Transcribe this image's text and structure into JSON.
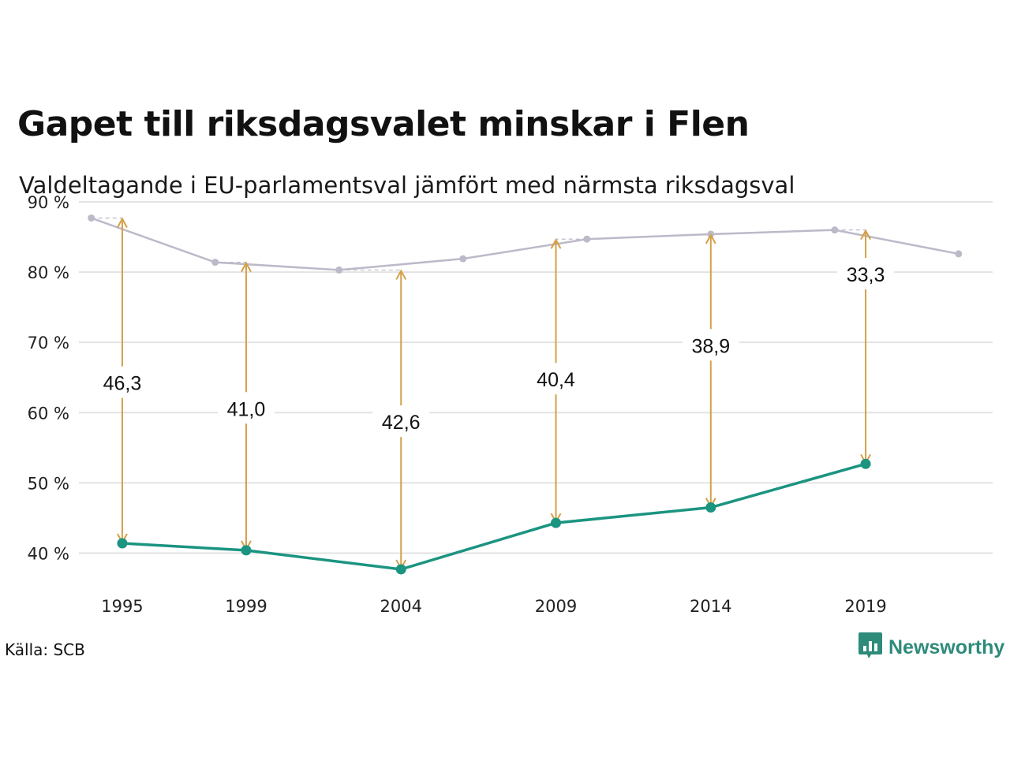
{
  "header": {
    "title": "Gapet till riksdagsvalet minskar i Flen",
    "subtitle": "Valdeltagande i EU-parlamentsval jämfört med närmsta riksdagsval"
  },
  "footer": {
    "source": "Källa: SCB",
    "brand_name": "Newsworthy",
    "brand_icon": "bar-chart-speech-bubble-icon"
  },
  "colors": {
    "eu": "#1b9480",
    "riksdag": "#bcb9c9",
    "arrow": "#d4a04a",
    "grid": "#e3e3e3",
    "brand": "#2e8b7a"
  },
  "chart_data": {
    "type": "line",
    "title": "Gapet till riksdagsvalet minskar i Flen",
    "subtitle": "Valdeltagande i EU-parlamentsval jämfört med närmsta riksdagsval",
    "y_ticks": [
      40,
      50,
      60,
      70,
      80,
      90
    ],
    "y_tick_labels": [
      "40 %",
      "50 %",
      "60 %",
      "70 %",
      "80 %",
      "90 %"
    ],
    "ylim": [
      35,
      90
    ],
    "xlim": [
      1993.6,
      2023.1
    ],
    "x_ticks": [
      1995,
      1999,
      2004,
      2009,
      2014,
      2019
    ],
    "x_tick_labels": [
      "1995",
      "1999",
      "2004",
      "2009",
      "2014",
      "2019"
    ],
    "grid": true,
    "series": [
      {
        "role": "riksdag",
        "x": [
          1994,
          1998,
          2002,
          2006,
          2010,
          2014,
          2018,
          2022
        ],
        "values": [
          87.7,
          81.4,
          80.3,
          81.9,
          84.7,
          85.4,
          86.0,
          82.6
        ]
      },
      {
        "role": "eu",
        "x": [
          1995,
          1999,
          2004,
          2009,
          2014,
          2019
        ],
        "values": [
          41.4,
          40.4,
          37.7,
          44.3,
          46.5,
          52.7
        ]
      }
    ],
    "gaps": [
      {
        "x": 1995,
        "from": 41.4,
        "to": 87.7,
        "label": "46,3"
      },
      {
        "x": 1999,
        "from": 40.4,
        "to": 81.4,
        "label": "41,0"
      },
      {
        "x": 2004,
        "from": 37.7,
        "to": 80.3,
        "label": "42,6"
      },
      {
        "x": 2009,
        "from": 44.3,
        "to": 84.7,
        "label": "40,4"
      },
      {
        "x": 2014,
        "from": 46.5,
        "to": 85.4,
        "label": "38,9"
      },
      {
        "x": 2019,
        "from": 52.7,
        "to": 86.0,
        "label": "33,3"
      }
    ]
  }
}
